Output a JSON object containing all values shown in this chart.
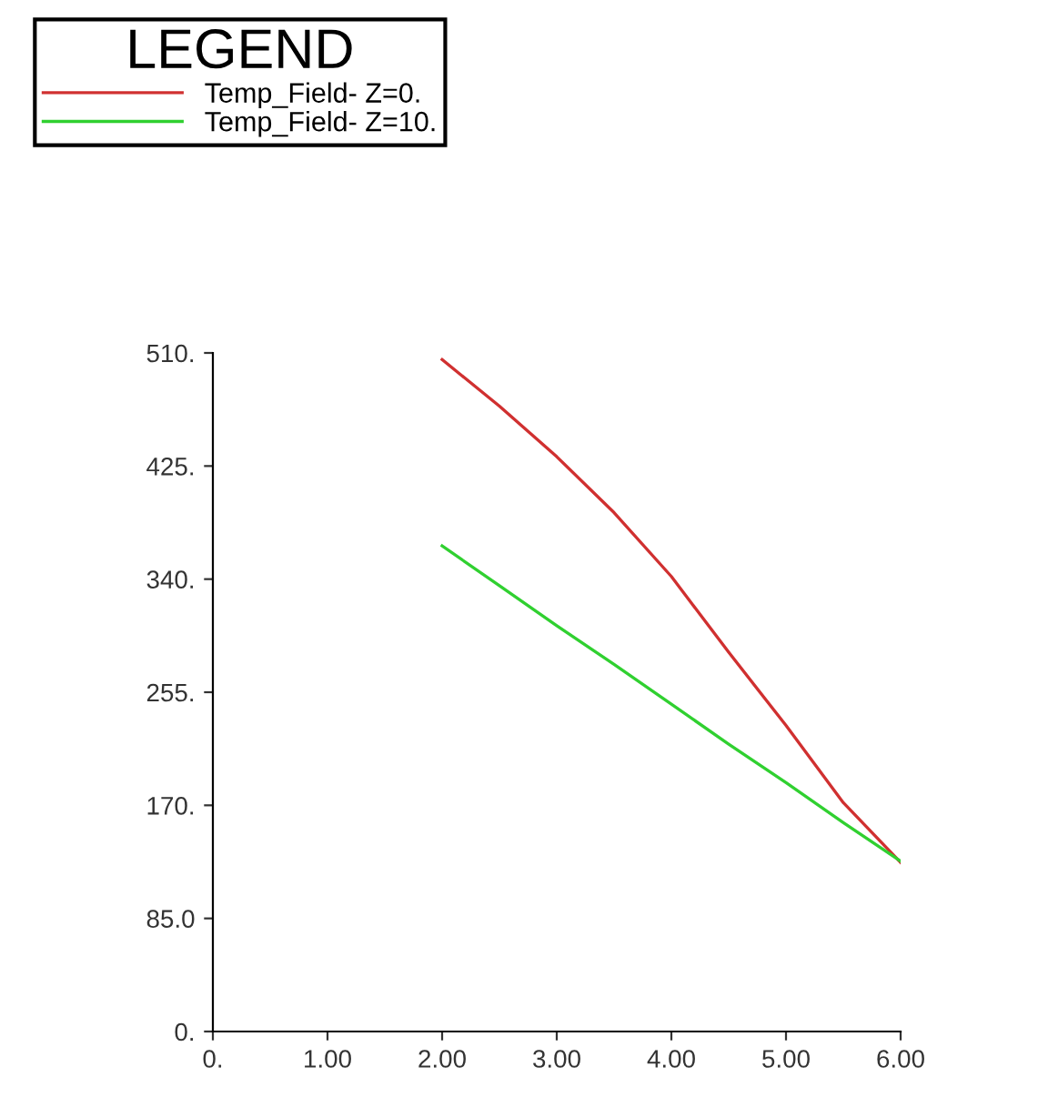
{
  "chart_data": {
    "type": "line",
    "legend_title": "LEGEND",
    "legend": "top left",
    "x": [
      2,
      2.5,
      3,
      3.5,
      4,
      4.5,
      5,
      5.5,
      6
    ],
    "series": [
      {
        "name": "Temp_Field- Z=0.",
        "color": "#d03030",
        "values": [
          505,
          470,
          432,
          390,
          342,
          285,
          230,
          172,
          127
        ]
      },
      {
        "name": "Temp_Field- Z=10.",
        "color": "#30d030",
        "values": [
          365,
          335,
          305,
          276,
          246,
          216,
          187,
          157,
          128
        ]
      }
    ],
    "xlim": [
      0,
      6
    ],
    "ylim": [
      0,
      510
    ],
    "xticks": [
      {
        "value": 0,
        "label": "0."
      },
      {
        "value": 1,
        "label": "1.00"
      },
      {
        "value": 2,
        "label": "2.00"
      },
      {
        "value": 3,
        "label": "3.00"
      },
      {
        "value": 4,
        "label": "4.00"
      },
      {
        "value": 5,
        "label": "5.00"
      },
      {
        "value": 6,
        "label": "6.00"
      }
    ],
    "yticks": [
      {
        "value": 0,
        "label": "0."
      },
      {
        "value": 85,
        "label": "85.0"
      },
      {
        "value": 170,
        "label": "170."
      },
      {
        "value": 255,
        "label": "255."
      },
      {
        "value": 340,
        "label": "340."
      },
      {
        "value": 425,
        "label": "425."
      },
      {
        "value": 510,
        "label": "510."
      }
    ],
    "grid": false
  }
}
